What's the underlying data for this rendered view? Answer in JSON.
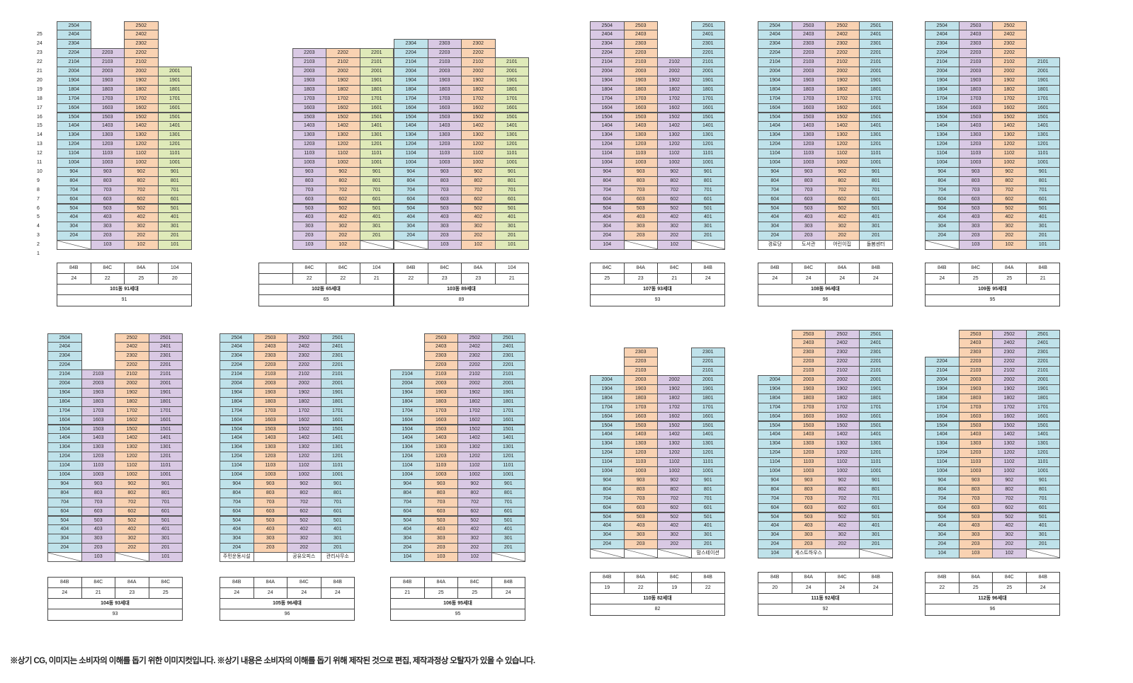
{
  "floor_axis": [
    "25",
    "24",
    "23",
    "22",
    "21",
    "20",
    "19",
    "18",
    "17",
    "16",
    "15",
    "14",
    "13",
    "12",
    "11",
    "10",
    "9",
    "8",
    "7",
    "6",
    "5",
    "4",
    "3",
    "2",
    "1"
  ],
  "buildings": [
    {
      "name": "building-101",
      "cols": [
        {
          "c": "blue",
          "top": 25,
          "gnd": "slash"
        },
        {
          "c": "purple",
          "top": 22,
          "gnd": "unit"
        },
        {
          "c": "orange",
          "top": 25,
          "gnd": "unit"
        },
        {
          "c": "green",
          "top": 20,
          "gnd": "unit"
        }
      ],
      "types": [
        "84B",
        "84C",
        "84A",
        "104"
      ],
      "counts": [
        "24",
        "22",
        "25",
        "20"
      ],
      "title": "101동 91세대",
      "total": "91"
    },
    {
      "name": "building-102",
      "cols": [
        {
          "c": "none",
          "top": 0,
          "gnd": "none"
        },
        {
          "c": "purple",
          "top": 22,
          "gnd": "unit"
        },
        {
          "c": "orange",
          "top": 22,
          "gnd": "unit"
        },
        {
          "c": "green",
          "top": 22,
          "gnd": "slash"
        }
      ],
      "types": [
        "",
        "84C",
        "84C",
        "104"
      ],
      "counts": [
        "",
        "22",
        "22",
        "21"
      ],
      "title": "102동 65세대",
      "total": "65"
    },
    {
      "name": "building-103",
      "cols": [
        {
          "c": "blue",
          "top": 23,
          "gnd": "slash"
        },
        {
          "c": "purple",
          "top": 23,
          "gnd": "unit"
        },
        {
          "c": "orange",
          "top": 23,
          "gnd": "unit"
        },
        {
          "c": "green",
          "top": 21,
          "gnd": "unit"
        }
      ],
      "types": [
        "84B",
        "84C",
        "84A",
        "104"
      ],
      "counts": [
        "22",
        "23",
        "23",
        "21"
      ],
      "title": "103동 89세대",
      "total": "89"
    },
    {
      "name": "building-107",
      "cols": [
        {
          "c": "purple",
          "top": 25,
          "gnd": "unit"
        },
        {
          "c": "orange",
          "top": 25,
          "gnd": "slash"
        },
        {
          "c": "purple",
          "top": 21,
          "gnd": "unit"
        },
        {
          "c": "blue",
          "top": 25,
          "gnd": "slash"
        }
      ],
      "types": [
        "84C",
        "84A",
        "84C",
        "84B"
      ],
      "counts": [
        "25",
        "23",
        "21",
        "24"
      ],
      "title": "107동 93세대",
      "total": "93"
    },
    {
      "name": "building-108",
      "cols": [
        {
          "c": "blue",
          "top": 25,
          "gnd": "label"
        },
        {
          "c": "purple",
          "top": 25,
          "gnd": "label"
        },
        {
          "c": "orange",
          "top": 25,
          "gnd": "label"
        },
        {
          "c": "blue",
          "top": 25,
          "gnd": "label"
        }
      ],
      "labels": [
        "경로당",
        "도서관",
        "어린이집",
        "돌봄센터"
      ],
      "types": [
        "84B",
        "84C",
        "84A",
        "84B"
      ],
      "counts": [
        "24",
        "24",
        "24",
        "24"
      ],
      "title": "108동 96세대",
      "total": "96"
    },
    {
      "name": "building-109",
      "cols": [
        {
          "c": "blue",
          "top": 25,
          "gnd": "slash"
        },
        {
          "c": "purple",
          "top": 25,
          "gnd": "unit"
        },
        {
          "c": "orange",
          "top": 25,
          "gnd": "unit"
        },
        {
          "c": "blue",
          "top": 21,
          "gnd": "unit"
        }
      ],
      "types": [
        "84B",
        "84C",
        "84A",
        "84B"
      ],
      "counts": [
        "24",
        "25",
        "25",
        "21"
      ],
      "title": "109동 95세대",
      "total": "95"
    },
    {
      "name": "building-104",
      "cols": [
        {
          "c": "blue",
          "top": 25,
          "gnd": "slash"
        },
        {
          "c": "purple",
          "top": 21,
          "gnd": "unit"
        },
        {
          "c": "orange",
          "top": 25,
          "gnd": "slash"
        },
        {
          "c": "purple",
          "top": 25,
          "gnd": "unit"
        }
      ],
      "types": [
        "84B",
        "84C",
        "84A",
        "84C"
      ],
      "counts": [
        "24",
        "21",
        "23",
        "25"
      ],
      "title": "104동 93세대",
      "total": "93"
    },
    {
      "name": "building-105",
      "cols": [
        {
          "c": "blue",
          "top": 25,
          "gnd": "label"
        },
        {
          "c": "orange",
          "top": 25,
          "gnd": "label"
        },
        {
          "c": "purple",
          "top": 25,
          "gnd": "label"
        },
        {
          "c": "blue",
          "top": 25,
          "gnd": "label"
        }
      ],
      "labels": [
        "주민운동시설",
        "",
        "공유오피스",
        "관리사무소"
      ],
      "types": [
        "84B",
        "84A",
        "84C",
        "84B"
      ],
      "counts": [
        "24",
        "24",
        "24",
        "24"
      ],
      "title": "105동 96세대",
      "total": "96"
    },
    {
      "name": "building-106",
      "cols": [
        {
          "c": "blue",
          "top": 21,
          "gnd": "unit"
        },
        {
          "c": "orange",
          "top": 25,
          "gnd": "unit"
        },
        {
          "c": "purple",
          "top": 25,
          "gnd": "unit"
        },
        {
          "c": "blue",
          "top": 25,
          "gnd": "slash"
        }
      ],
      "types": [
        "84B",
        "84A",
        "84C",
        "84B"
      ],
      "counts": [
        "21",
        "25",
        "25",
        "24"
      ],
      "title": "106동 95세대",
      "total": "95"
    },
    {
      "name": "building-110",
      "cols": [
        {
          "c": "blue",
          "top": 20,
          "gnd": "slash"
        },
        {
          "c": "orange",
          "top": 23,
          "gnd": "slash"
        },
        {
          "c": "purple",
          "top": 20,
          "gnd": "slash"
        },
        {
          "c": "blue",
          "top": 23,
          "gnd": "label"
        }
      ],
      "labels": [
        "",
        "",
        "",
        "맘스테이션"
      ],
      "types": [
        "84B",
        "84A",
        "84C",
        "84B"
      ],
      "counts": [
        "19",
        "22",
        "19",
        "22"
      ],
      "title": "110동 82세대",
      "total": "82"
    },
    {
      "name": "building-111",
      "cols": [
        {
          "c": "blue",
          "top": 20,
          "gnd": "unit"
        },
        {
          "c": "orange",
          "top": 25,
          "gnd": "label"
        },
        {
          "c": "purple",
          "top": 25,
          "gnd": "label"
        },
        {
          "c": "blue",
          "top": 25,
          "gnd": "slash"
        }
      ],
      "labels": [
        "",
        "게스트하우스",
        "",
        ""
      ],
      "types": [
        "84B",
        "84A",
        "84C",
        "84B"
      ],
      "counts": [
        "20",
        "24",
        "24",
        "24"
      ],
      "title": "111동 92세대",
      "total": "92"
    },
    {
      "name": "building-112",
      "cols": [
        {
          "c": "blue",
          "top": 22,
          "gnd": "unit"
        },
        {
          "c": "orange",
          "top": 25,
          "gnd": "unit"
        },
        {
          "c": "purple",
          "top": 25,
          "gnd": "unit"
        },
        {
          "c": "blue",
          "top": 25,
          "gnd": "slash"
        }
      ],
      "types": [
        "84B",
        "84A",
        "84C",
        "84B"
      ],
      "counts": [
        "22",
        "25",
        "25",
        "24"
      ],
      "title": "112동 96세대",
      "total": "96"
    }
  ],
  "footnote": "※상기 CG, 이미지는 소비자의 이해를 돕기 위한 이미지컷입니다. ※상기 내용은 소비자의 이해를 돕기 위해 제작된 것으로 편집, 제작과정상 오탈자가 있을 수 있습니다."
}
